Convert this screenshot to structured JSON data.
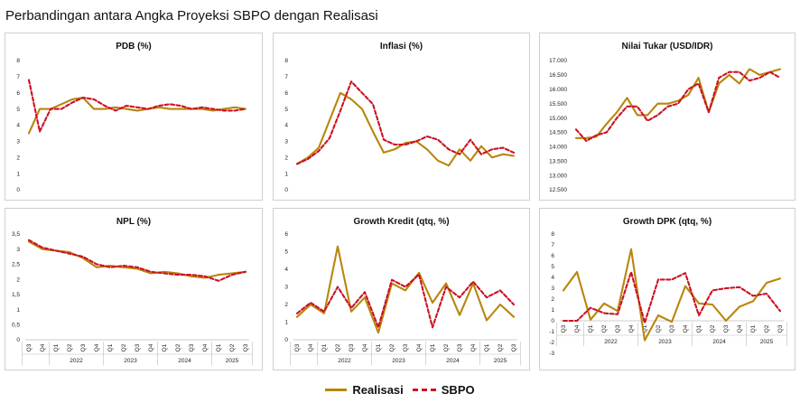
{
  "title": "Perbandingan antara Angka Proyeksi SBPO dengan Realisasi",
  "legend": {
    "realisasi": "Realisasi",
    "sbpo": "SBPO"
  },
  "colors": {
    "realisasi": "#b8860b",
    "sbpo": "#cc1122",
    "panel_border": "#cfcfcf"
  },
  "chart_data": [
    {
      "type": "line",
      "title": "PDB (%)",
      "yticks": [
        "0",
        "1",
        "2",
        "3",
        "4",
        "5",
        "6",
        "7",
        "8"
      ],
      "ylim": [
        0,
        8
      ],
      "x": [
        0,
        1,
        2,
        3,
        4,
        5,
        6,
        7,
        8,
        9,
        10,
        11,
        12,
        13,
        14,
        15,
        16,
        17,
        18,
        19,
        20
      ],
      "series": [
        {
          "name": "Realisasi",
          "values": [
            3.5,
            5.0,
            5.0,
            5.3,
            5.6,
            5.7,
            5.0,
            5.0,
            5.1,
            5.0,
            4.9,
            5.0,
            5.1,
            5.0,
            5.0,
            5.0,
            5.0,
            4.9,
            5.0,
            5.1,
            5.0
          ]
        },
        {
          "name": "SBPO",
          "values": [
            6.8,
            3.6,
            5.0,
            5.0,
            5.4,
            5.7,
            5.6,
            5.2,
            4.9,
            5.2,
            5.1,
            5.0,
            5.2,
            5.3,
            5.2,
            5.0,
            5.1,
            5.0,
            4.9,
            4.9,
            5.0
          ]
        }
      ]
    },
    {
      "type": "line",
      "title": "Inflasi (%)",
      "yticks": [
        "0",
        "1",
        "2",
        "3",
        "4",
        "5",
        "6",
        "7",
        "8"
      ],
      "ylim": [
        0,
        8
      ],
      "x": [
        0,
        1,
        2,
        3,
        4,
        5,
        6,
        7,
        8,
        9,
        10,
        11,
        12,
        13,
        14,
        15,
        16,
        17,
        18,
        19,
        20
      ],
      "series": [
        {
          "name": "Realisasi",
          "values": [
            1.6,
            2.0,
            2.6,
            4.3,
            6.0,
            5.6,
            5.0,
            3.6,
            2.3,
            2.5,
            2.9,
            3.0,
            2.5,
            1.8,
            1.5,
            2.5,
            1.8,
            2.7,
            2.0,
            2.2,
            2.1
          ]
        },
        {
          "name": "SBPO",
          "values": [
            1.6,
            1.9,
            2.4,
            3.2,
            4.9,
            6.7,
            6.0,
            5.3,
            3.1,
            2.8,
            2.8,
            3.0,
            3.3,
            3.1,
            2.5,
            2.2,
            3.1,
            2.2,
            2.5,
            2.6,
            2.3
          ]
        }
      ]
    },
    {
      "type": "line",
      "title": "Nilai Tukar (USD/IDR)",
      "yticks": [
        "12.500",
        "13.000",
        "13.500",
        "14.000",
        "14.500",
        "15.000",
        "15.500",
        "16.000",
        "16.500",
        "17.000"
      ],
      "ylim": [
        12500,
        17000
      ],
      "x": [
        0,
        1,
        2,
        3,
        4,
        5,
        6,
        7,
        8,
        9,
        10,
        11,
        12,
        13,
        14,
        15,
        16,
        17,
        18,
        19,
        20
      ],
      "series": [
        {
          "name": "Realisasi",
          "values": [
            14300,
            14300,
            14350,
            14800,
            15200,
            15700,
            15100,
            15100,
            15500,
            15500,
            15600,
            15800,
            16400,
            15200,
            16200,
            16500,
            16200,
            16700,
            16500,
            16600,
            16700
          ]
        },
        {
          "name": "SBPO",
          "values": [
            14600,
            14200,
            14400,
            14500,
            15000,
            15400,
            15400,
            14900,
            15100,
            15400,
            15500,
            16000,
            16200,
            15200,
            16400,
            16600,
            16600,
            16300,
            16400,
            16600,
            16400
          ]
        }
      ]
    },
    {
      "type": "line",
      "title": "NPL (%)",
      "yticks": [
        "0",
        "0,5",
        "1",
        "1,5",
        "2",
        "2,5",
        "3",
        "3,5"
      ],
      "ylim": [
        0,
        3.5
      ],
      "categories": [
        "Q3",
        "Q4",
        "Q1",
        "Q2",
        "Q3",
        "Q4",
        "Q1",
        "Q2",
        "Q3",
        "Q4",
        "Q1",
        "Q2",
        "Q3",
        "Q4",
        "Q1",
        "Q2",
        "Q3"
      ],
      "years": [
        {
          "label": "2022",
          "from": 2,
          "to": 5
        },
        {
          "label": "2023",
          "from": 6,
          "to": 9
        },
        {
          "label": "2024",
          "from": 10,
          "to": 13
        },
        {
          "label": "2025",
          "from": 14,
          "to": 16
        }
      ],
      "series": [
        {
          "name": "Realisasi",
          "values": [
            3.25,
            3.0,
            2.95,
            2.9,
            2.7,
            2.4,
            2.45,
            2.4,
            2.35,
            2.2,
            2.25,
            2.2,
            2.1,
            2.05,
            2.15,
            2.2,
            2.25
          ]
        },
        {
          "name": "SBPO",
          "values": [
            3.3,
            3.05,
            2.95,
            2.85,
            2.75,
            2.5,
            2.4,
            2.45,
            2.4,
            2.25,
            2.2,
            2.15,
            2.15,
            2.1,
            1.95,
            2.15,
            2.25
          ]
        }
      ]
    },
    {
      "type": "line",
      "title": "Growth Kredit (qtq, %)",
      "yticks": [
        "0",
        "1",
        "2",
        "3",
        "4",
        "5",
        "6"
      ],
      "ylim": [
        0,
        6
      ],
      "categories": [
        "Q3",
        "Q4",
        "Q1",
        "Q2",
        "Q3",
        "Q4",
        "Q1",
        "Q2",
        "Q3",
        "Q4",
        "Q1",
        "Q2",
        "Q3",
        "Q4",
        "Q1",
        "Q2",
        "Q3"
      ],
      "years": [
        {
          "label": "2022",
          "from": 2,
          "to": 5
        },
        {
          "label": "2023",
          "from": 6,
          "to": 9
        },
        {
          "label": "2024",
          "from": 10,
          "to": 13
        },
        {
          "label": "2025",
          "from": 14,
          "to": 16
        }
      ],
      "series": [
        {
          "name": "Realisasi",
          "values": [
            1.3,
            2.0,
            1.5,
            5.3,
            1.6,
            2.4,
            0.4,
            3.2,
            2.8,
            3.8,
            2.1,
            3.2,
            1.4,
            3.2,
            1.1,
            2.0,
            1.3
          ]
        },
        {
          "name": "SBPO",
          "values": [
            1.5,
            2.1,
            1.6,
            3.0,
            1.8,
            2.7,
            0.7,
            3.4,
            3.0,
            3.7,
            0.7,
            3.0,
            2.4,
            3.3,
            2.4,
            2.8,
            2.0
          ]
        }
      ]
    },
    {
      "type": "line",
      "title": "Growth DPK (qtq, %)",
      "yticks": [
        "-3",
        "-2",
        "-1",
        "0",
        "1",
        "2",
        "3",
        "4",
        "5",
        "6",
        "7",
        "8"
      ],
      "ylim": [
        -3,
        8
      ],
      "categories": [
        "Q3",
        "Q4",
        "Q1",
        "Q2",
        "Q3",
        "Q4",
        "Q1",
        "Q2",
        "Q3",
        "Q4",
        "Q1",
        "Q2",
        "Q3",
        "Q4",
        "Q1",
        "Q2",
        "Q3"
      ],
      "years": [
        {
          "label": "2022",
          "from": 2,
          "to": 5
        },
        {
          "label": "2023",
          "from": 6,
          "to": 9
        },
        {
          "label": "2024",
          "from": 10,
          "to": 13
        },
        {
          "label": "2025",
          "from": 14,
          "to": 16
        }
      ],
      "series": [
        {
          "name": "Realisasi",
          "values": [
            2.8,
            4.5,
            0.1,
            1.6,
            0.9,
            6.6,
            -1.8,
            0.5,
            -0.1,
            3.2,
            1.6,
            1.5,
            0.0,
            1.3,
            1.8,
            3.5,
            3.9
          ]
        },
        {
          "name": "SBPO",
          "values": [
            0.0,
            0.0,
            1.2,
            0.7,
            0.6,
            4.5,
            -0.2,
            3.8,
            3.8,
            4.4,
            0.5,
            2.8,
            3.0,
            3.1,
            2.3,
            2.5,
            0.9
          ]
        }
      ]
    }
  ]
}
